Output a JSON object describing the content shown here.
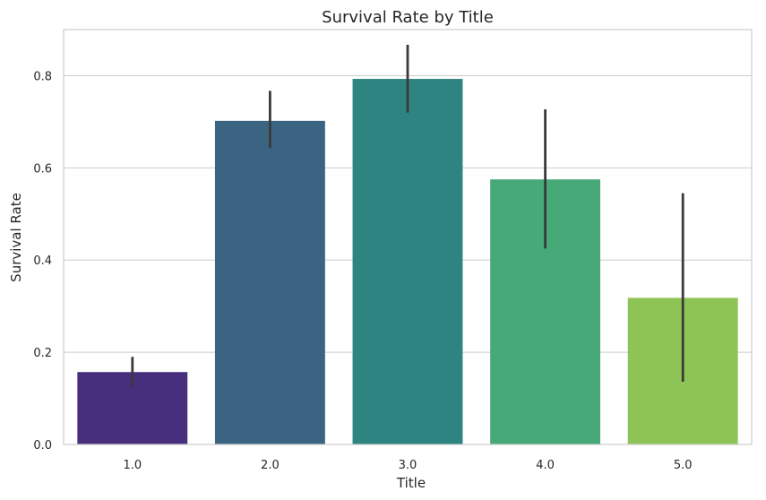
{
  "chart_data": {
    "type": "bar",
    "title": "Survival Rate by Title",
    "xlabel": "Title",
    "ylabel": "Survival Rate",
    "categories": [
      "1.0",
      "2.0",
      "3.0",
      "4.0",
      "5.0"
    ],
    "values": [
      0.157,
      0.702,
      0.793,
      0.575,
      0.318
    ],
    "error_low": [
      0.125,
      0.643,
      0.72,
      0.425,
      0.136
    ],
    "error_high": [
      0.19,
      0.767,
      0.867,
      0.727,
      0.545
    ],
    "colors": [
      "#472f7d",
      "#3b6483",
      "#2e8480",
      "#47a977",
      "#8ec455"
    ],
    "error_color": "#3a3a3a",
    "ylim": [
      0,
      0.9
    ],
    "yticks": [
      0.0,
      0.2,
      0.4,
      0.6,
      0.8
    ],
    "ytick_labels": [
      "0.0",
      "0.2",
      "0.4",
      "0.6",
      "0.8"
    ],
    "grid": true,
    "grid_axis": "y"
  }
}
